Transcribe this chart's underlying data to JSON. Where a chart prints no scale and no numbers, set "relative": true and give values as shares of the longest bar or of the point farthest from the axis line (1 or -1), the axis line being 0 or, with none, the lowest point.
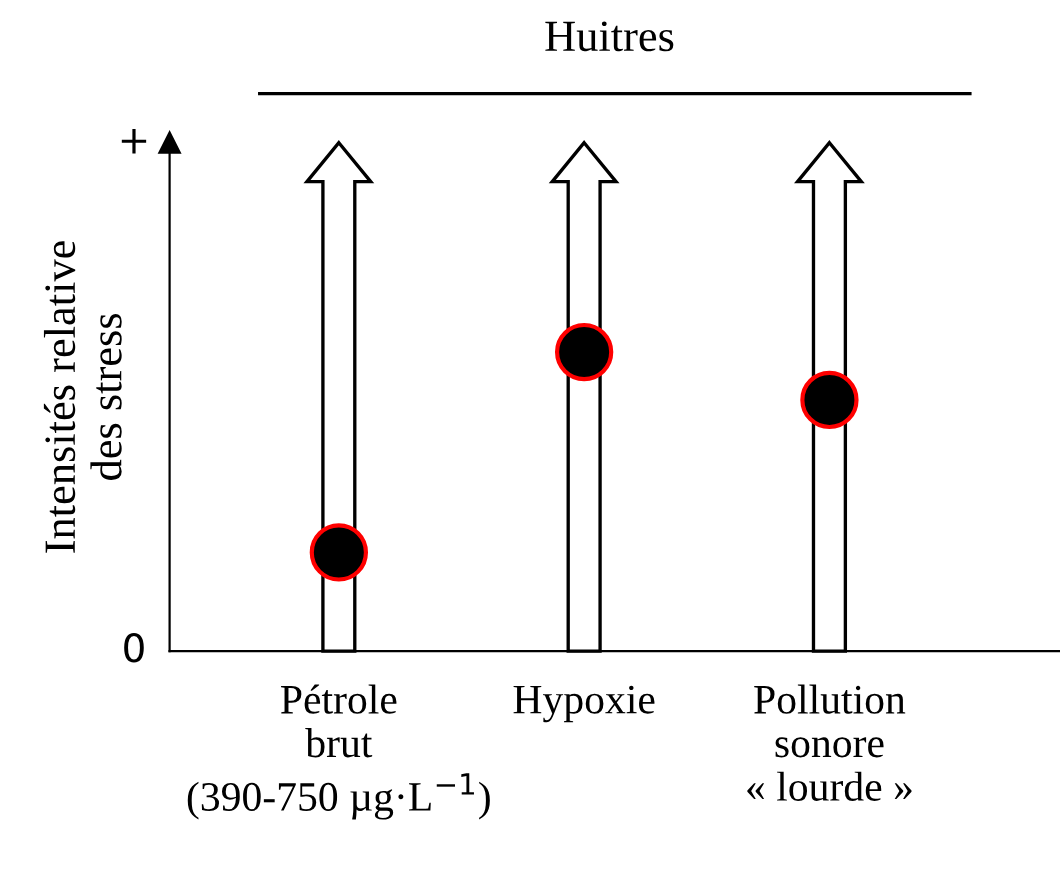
{
  "chart_data": {
    "type": "scatter",
    "title": "Huitres",
    "ylabel": "Intensités relative\ndes stress",
    "relative": true,
    "categories": [
      "Pétrole\nbrut\n(390-750 µg·L$^{−1}$)",
      "Hypoxie",
      "Pollution\nsonore\n« lourde »"
    ],
    "series": [
      {
        "color": "#000000",
        "values": [
          0.33,
          1,
          0.84
        ]
      }
    ],
    "annotations": [
      "+",
      "0"
    ],
    "marker": "circle",
    "legend": false
  }
}
